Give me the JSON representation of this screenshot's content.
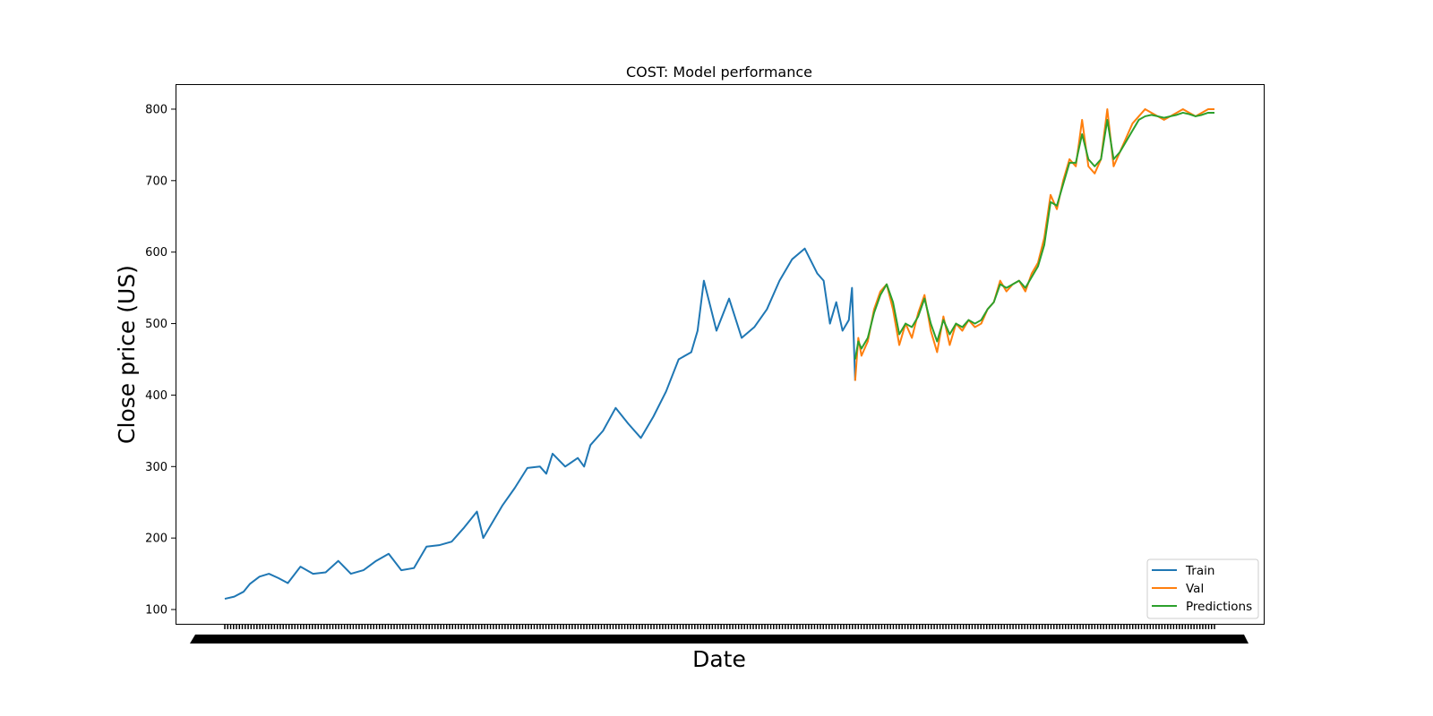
{
  "chart_data": {
    "type": "line",
    "title": "COST: Model performance",
    "xlabel": "Date",
    "ylabel": "Close price (US)",
    "ylim": [
      80,
      835
    ],
    "yticks": [
      100,
      200,
      300,
      400,
      500,
      600,
      700,
      800
    ],
    "grid": false,
    "legend_position": "bottom-right",
    "colors": {
      "Train": "#1f77b4",
      "Val": "#ff7f0e",
      "Predictions": "#2ca02c"
    },
    "series": [
      {
        "name": "Train",
        "x": [
          0,
          15,
          30,
          40,
          55,
          70,
          85,
          100,
          120,
          140,
          160,
          180,
          200,
          220,
          240,
          260,
          280,
          300,
          320,
          340,
          360,
          380,
          400,
          410,
          420,
          440,
          460,
          480,
          500,
          510,
          520,
          540,
          560,
          570,
          580,
          600,
          620,
          640,
          660,
          680,
          700,
          720,
          740,
          750,
          760,
          780,
          800,
          820,
          840,
          860,
          880,
          900,
          920,
          940,
          950,
          960,
          970,
          980,
          990,
          995,
          1000
        ],
        "values": [
          115,
          118,
          125,
          136,
          146,
          150,
          144,
          137,
          160,
          150,
          152,
          168,
          150,
          155,
          168,
          178,
          155,
          158,
          188,
          190,
          195,
          215,
          237,
          200,
          215,
          245,
          270,
          298,
          300,
          290,
          318,
          300,
          312,
          300,
          330,
          350,
          382,
          360,
          340,
          370,
          405,
          450,
          460,
          490,
          560,
          490,
          535,
          480,
          495,
          520,
          560,
          590,
          605,
          570,
          560,
          500,
          530,
          490,
          505,
          550,
          420
        ]
      },
      {
        "name": "Val",
        "x": [
          1000,
          1005,
          1010,
          1020,
          1030,
          1040,
          1050,
          1060,
          1070,
          1080,
          1090,
          1100,
          1110,
          1120,
          1130,
          1140,
          1150,
          1160,
          1170,
          1180,
          1190,
          1200,
          1210,
          1220,
          1230,
          1240,
          1250,
          1260,
          1270,
          1280,
          1290,
          1300,
          1310,
          1320,
          1330,
          1340,
          1350,
          1360,
          1370,
          1380,
          1390,
          1400,
          1410,
          1420,
          1430,
          1440,
          1450,
          1460,
          1470,
          1480,
          1490,
          1500,
          1510,
          1520,
          1530,
          1540,
          1550,
          1560,
          1570
        ],
        "values": [
          420,
          480,
          455,
          475,
          520,
          545,
          555,
          520,
          470,
          500,
          480,
          515,
          540,
          490,
          460,
          510,
          470,
          500,
          490,
          505,
          495,
          500,
          520,
          530,
          560,
          545,
          555,
          560,
          545,
          570,
          585,
          620,
          680,
          660,
          700,
          730,
          720,
          785,
          720,
          710,
          730,
          800,
          720,
          740,
          760,
          780,
          790,
          800,
          795,
          790,
          785,
          790,
          795,
          800,
          795,
          790,
          795,
          800,
          800
        ]
      },
      {
        "name": "Predictions",
        "x": [
          1000,
          1005,
          1010,
          1020,
          1030,
          1040,
          1050,
          1060,
          1070,
          1080,
          1090,
          1100,
          1110,
          1120,
          1130,
          1140,
          1150,
          1160,
          1170,
          1180,
          1190,
          1200,
          1210,
          1220,
          1230,
          1240,
          1250,
          1260,
          1270,
          1280,
          1290,
          1300,
          1310,
          1320,
          1330,
          1340,
          1350,
          1360,
          1370,
          1380,
          1390,
          1400,
          1410,
          1420,
          1430,
          1440,
          1450,
          1460,
          1470,
          1480,
          1490,
          1500,
          1510,
          1520,
          1530,
          1540,
          1550,
          1560,
          1570
        ],
        "values": [
          450,
          475,
          465,
          480,
          515,
          540,
          555,
          530,
          485,
          500,
          495,
          510,
          535,
          500,
          475,
          505,
          485,
          500,
          495,
          505,
          500,
          505,
          520,
          530,
          555,
          550,
          555,
          560,
          550,
          565,
          580,
          610,
          670,
          665,
          695,
          725,
          725,
          765,
          730,
          720,
          730,
          785,
          730,
          740,
          755,
          770,
          785,
          790,
          792,
          790,
          788,
          790,
          792,
          795,
          793,
          790,
          792,
          795,
          795
        ]
      }
    ]
  }
}
